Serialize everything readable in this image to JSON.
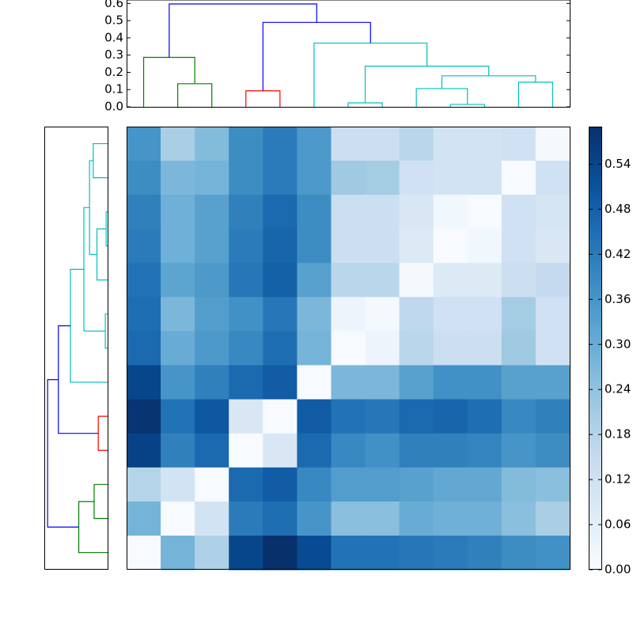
{
  "chart_data": {
    "type": "clustermap",
    "dendrogram": {
      "xlim": [
        0,
        130
      ],
      "ylim": [
        0,
        0.62
      ],
      "left_xlim": [
        0.63,
        0
      ],
      "yticks": [
        {
          "value": 0,
          "label": "0.0"
        },
        {
          "value": 0.1,
          "label": "0.1"
        },
        {
          "value": 0.2,
          "label": "0.2"
        },
        {
          "value": 0.3,
          "label": "0.3"
        },
        {
          "value": 0.4,
          "label": "0.4"
        },
        {
          "value": 0.5,
          "label": "0.5"
        },
        {
          "value": 0.6,
          "label": "0.6"
        }
      ],
      "links": [
        {
          "x": [
            15,
            15,
            25,
            25
          ],
          "y": [
            0,
            0.134,
            0.134,
            0
          ],
          "color": "#008000"
        },
        {
          "x": [
            5,
            5,
            20,
            20
          ],
          "y": [
            0,
            0.287,
            0.287,
            0.134
          ],
          "color": "#008000"
        },
        {
          "x": [
            35,
            35,
            45,
            45
          ],
          "y": [
            0,
            0.093,
            0.093,
            0
          ],
          "color": "#ff0000"
        },
        {
          "x": [
            65,
            65,
            75,
            75
          ],
          "y": [
            0,
            0.023,
            0.023,
            0
          ],
          "color": "#00bfbf"
        },
        {
          "x": [
            95,
            95,
            105,
            105
          ],
          "y": [
            0,
            0.014,
            0.014,
            0
          ],
          "color": "#00bfbf"
        },
        {
          "x": [
            85,
            85,
            100,
            100
          ],
          "y": [
            0,
            0.106,
            0.106,
            0.014
          ],
          "color": "#00bfbf"
        },
        {
          "x": [
            115,
            115,
            125,
            125
          ],
          "y": [
            0,
            0.143,
            0.143,
            0
          ],
          "color": "#00bfbf"
        },
        {
          "x": [
            92.5,
            92.5,
            120,
            120
          ],
          "y": [
            0.106,
            0.18,
            0.18,
            0.143
          ],
          "color": "#00bfbf"
        },
        {
          "x": [
            70,
            70,
            106.25,
            106.25
          ],
          "y": [
            0.023,
            0.236,
            0.236,
            0.18
          ],
          "color": "#00bfbf"
        },
        {
          "x": [
            55,
            55,
            88.125,
            88.125
          ],
          "y": [
            0,
            0.37,
            0.37,
            0.236
          ],
          "color": "#00bfbf"
        },
        {
          "x": [
            40,
            40,
            71.5625,
            71.5625
          ],
          "y": [
            0.093,
            0.49,
            0.49,
            0.37
          ],
          "color": "#0000ff"
        },
        {
          "x": [
            12.5,
            12.5,
            55.78,
            55.78
          ],
          "y": [
            0.287,
            0.597,
            0.597,
            0.49
          ],
          "color": "#0000ff"
        }
      ]
    },
    "heatmap": {
      "vlim": [
        0,
        0.59
      ],
      "cticks": [
        {
          "value": 0,
          "label": "0.00"
        },
        {
          "value": 0.06,
          "label": "0.06"
        },
        {
          "value": 0.12,
          "label": "0.12"
        },
        {
          "value": 0.18,
          "label": "0.18"
        },
        {
          "value": 0.24,
          "label": "0.24"
        },
        {
          "value": 0.3,
          "label": "0.30"
        },
        {
          "value": 0.36,
          "label": "0.36"
        },
        {
          "value": 0.42,
          "label": "0.42"
        },
        {
          "value": 0.48,
          "label": "0.48"
        },
        {
          "value": 0.54,
          "label": "0.54"
        }
      ],
      "values": [
        [
          0.36,
          0.2,
          0.26,
          0.38,
          0.42,
          0.35,
          0.13,
          0.13,
          0.17,
          0.11,
          0.11,
          0.12,
          0.01
        ],
        [
          0.38,
          0.27,
          0.28,
          0.38,
          0.42,
          0.35,
          0.22,
          0.21,
          0.12,
          0.11,
          0.11,
          0.0,
          0.12
        ],
        [
          0.41,
          0.29,
          0.33,
          0.41,
          0.46,
          0.38,
          0.13,
          0.13,
          0.09,
          0.02,
          0.0,
          0.12,
          0.1
        ],
        [
          0.42,
          0.29,
          0.33,
          0.42,
          0.47,
          0.38,
          0.13,
          0.13,
          0.08,
          0.0,
          0.02,
          0.12,
          0.09
        ],
        [
          0.44,
          0.32,
          0.35,
          0.43,
          0.48,
          0.33,
          0.17,
          0.17,
          0.01,
          0.08,
          0.08,
          0.13,
          0.15
        ],
        [
          0.45,
          0.27,
          0.34,
          0.37,
          0.43,
          0.27,
          0.03,
          0.01,
          0.16,
          0.12,
          0.12,
          0.21,
          0.12
        ],
        [
          0.46,
          0.3,
          0.35,
          0.39,
          0.45,
          0.28,
          0.0,
          0.03,
          0.17,
          0.13,
          0.13,
          0.22,
          0.12
        ],
        [
          0.54,
          0.36,
          0.41,
          0.46,
          0.49,
          0.0,
          0.27,
          0.27,
          0.33,
          0.37,
          0.37,
          0.33,
          0.33
        ],
        [
          0.58,
          0.44,
          0.5,
          0.09,
          0.0,
          0.49,
          0.44,
          0.43,
          0.46,
          0.47,
          0.45,
          0.39,
          0.41
        ],
        [
          0.55,
          0.41,
          0.46,
          0.0,
          0.09,
          0.46,
          0.39,
          0.37,
          0.41,
          0.41,
          0.4,
          0.36,
          0.38
        ],
        [
          0.18,
          0.11,
          0.0,
          0.46,
          0.49,
          0.39,
          0.34,
          0.34,
          0.33,
          0.31,
          0.31,
          0.26,
          0.25
        ],
        [
          0.28,
          0.0,
          0.11,
          0.42,
          0.45,
          0.36,
          0.25,
          0.25,
          0.3,
          0.29,
          0.29,
          0.25,
          0.2
        ],
        [
          0.0,
          0.28,
          0.19,
          0.54,
          0.59,
          0.53,
          0.44,
          0.44,
          0.43,
          0.42,
          0.41,
          0.38,
          0.37
        ]
      ]
    }
  }
}
